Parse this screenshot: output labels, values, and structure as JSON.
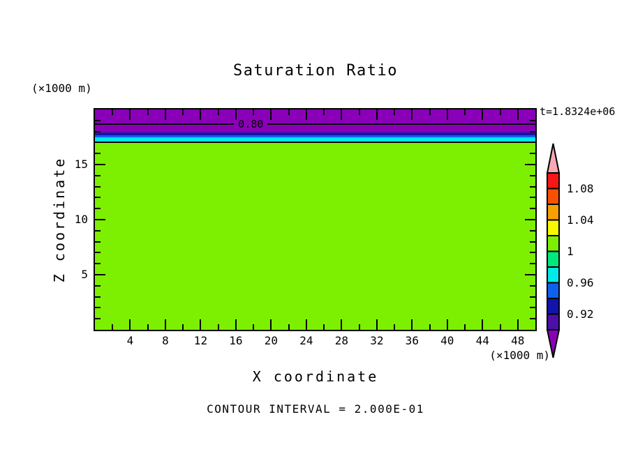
{
  "title": "Saturation Ratio",
  "time_label": "t=1.8324e+06",
  "contour_interval_label": "CONTOUR INTERVAL = 2.000E-01",
  "contour_label": "0.80",
  "axes": {
    "x": {
      "label": "X coordinate",
      "units": "(×1000 m)"
    },
    "y": {
      "label": "Z coordinate",
      "units": "(×1000 m)"
    }
  },
  "colorbar": {
    "arrow_top_color": "#F8A8B4",
    "arrow_bottom_color": "#8A00B8",
    "segment_colors": [
      "#F81616",
      "#F85200",
      "#F8A000",
      "#F8F800",
      "#7CF000",
      "#00E87C",
      "#00E8E8",
      "#1060F0",
      "#1212AC",
      "#4A10A8"
    ],
    "labels": [
      {
        "text": "1.08",
        "boundary": 1
      },
      {
        "text": "1.04",
        "boundary": 3
      },
      {
        "text": "1",
        "boundary": 5
      },
      {
        "text": "0.96",
        "boundary": 7
      },
      {
        "text": "0.92",
        "boundary": 9
      }
    ]
  },
  "chart_data": {
    "type": "heatmap",
    "title": "Saturation Ratio",
    "xlabel": "X coordinate (×1000 m)",
    "ylabel": "Z coordinate (×1000 m)",
    "xlim": [
      0,
      50
    ],
    "ylim": [
      0,
      20
    ],
    "x_major_ticks": [
      4,
      8,
      12,
      16,
      20,
      24,
      28,
      32,
      36,
      40,
      44,
      48
    ],
    "x_minor_step": 2,
    "y_major_ticks": [
      5,
      10,
      15
    ],
    "y_minor_step": 1,
    "grid": false,
    "time_annotation": "t=1.8324e+06",
    "contour_interval": 0.2,
    "colorbar_boundary_values": [
      1.08,
      1.04,
      1.0,
      0.96,
      0.92
    ],
    "colorbar_step": 0.02,
    "bands": [
      {
        "value_range": "< 0.90",
        "z_range": [
          18.0,
          20.0
        ],
        "color": "#8A00B8"
      },
      {
        "value_range": "0.90 - 0.92",
        "z_range": [
          17.82,
          18.0
        ],
        "color": "#4A10A8"
      },
      {
        "value_range": "0.92 - 0.94",
        "z_range": [
          17.63,
          17.82
        ],
        "color": "#1212AC"
      },
      {
        "value_range": "0.94 - 0.96",
        "z_range": [
          17.47,
          17.63
        ],
        "color": "#1060F0"
      },
      {
        "value_range": "0.96 - 0.98",
        "z_range": [
          17.06,
          17.47
        ],
        "color": "#00E8E8"
      },
      {
        "value_range": "1.00 - 1.02",
        "z_range": [
          0.0,
          17.06
        ],
        "color": "#7CF000"
      }
    ],
    "contour_lines": [
      {
        "value": 0.8,
        "z": 18.67,
        "label": "0.80",
        "label_x": 17.7
      },
      {
        "value": 1.0,
        "z": 17.03,
        "label": null,
        "label_x": null
      }
    ]
  }
}
